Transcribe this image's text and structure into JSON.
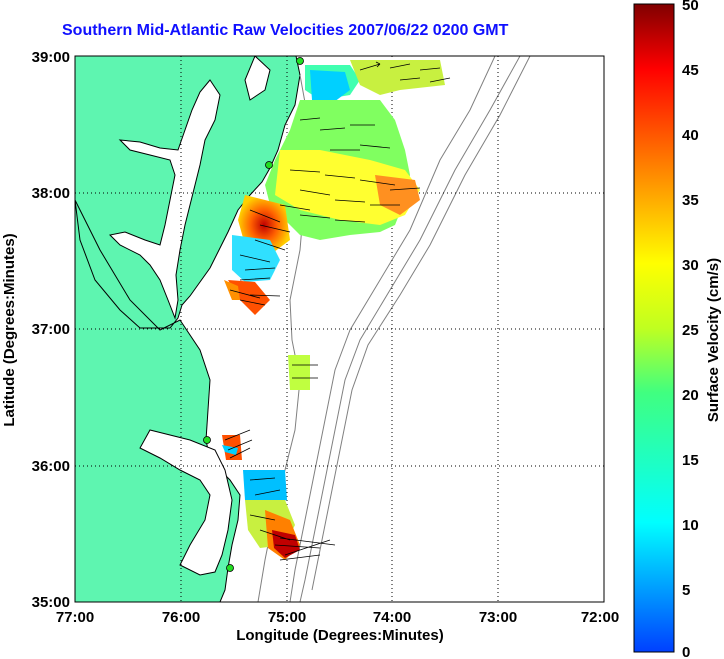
{
  "title": "Southern Mid-Atlantic Raw Velocities 2007/06/22 0200 GMT",
  "xlabel": "Longitude (Degrees:Minutes)",
  "ylabel": "Latitude (Degrees:Minutes)",
  "colorbar_label": "Surface Velocity (cm/s)",
  "x_ticks": [
    "77:00",
    "76:00",
    "75:00",
    "74:00",
    "73:00",
    "72:00"
  ],
  "y_ticks": [
    "39:00",
    "38:00",
    "37:00",
    "36:00",
    "35:00"
  ],
  "colorbar_ticks": [
    "0",
    "5",
    "10",
    "15",
    "20",
    "25",
    "30",
    "35",
    "40",
    "45",
    "50"
  ],
  "colors": {
    "land": "#5ef5b0",
    "title": "#1010ff",
    "coast": "#000000",
    "contour": "#808080",
    "station": "#22dd22"
  },
  "colorbar_range": [
    0,
    50
  ],
  "axes": {
    "lon_range": [
      "77:00 W",
      "72:00 W"
    ],
    "lat_range": [
      "35:00 N",
      "39:00 N"
    ],
    "grid": "dotted"
  }
}
